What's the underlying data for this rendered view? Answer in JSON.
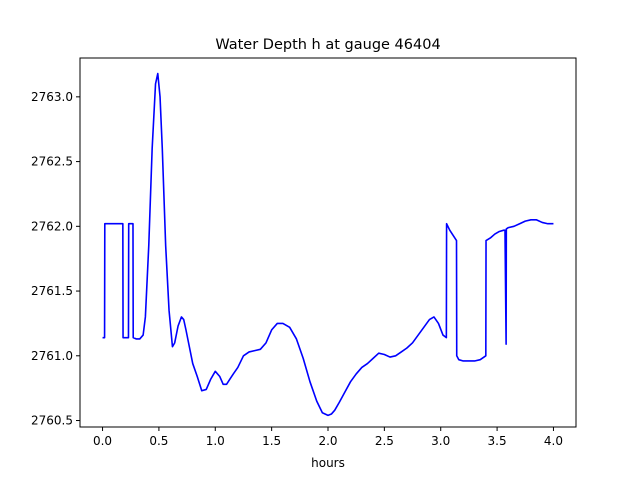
{
  "chart_data": {
    "type": "line",
    "title": "Water Depth h at gauge 46404",
    "xlabel": "hours",
    "ylabel": "",
    "xlim": [
      -0.2,
      4.2
    ],
    "ylim": [
      2760.45,
      2763.3
    ],
    "xticks": [
      0.0,
      0.5,
      1.0,
      1.5,
      2.0,
      2.5,
      3.0,
      3.5,
      4.0
    ],
    "xtick_labels": [
      "0.0",
      "0.5",
      "1.0",
      "1.5",
      "2.0",
      "2.5",
      "3.0",
      "3.5",
      "4.0"
    ],
    "yticks": [
      2760.5,
      2761.0,
      2761.5,
      2762.0,
      2762.5,
      2763.0
    ],
    "ytick_labels": [
      "2760.5",
      "2761.0",
      "2761.5",
      "2762.0",
      "2762.5",
      "2763.0"
    ],
    "grid": false,
    "series": [
      {
        "color": "#0000ff",
        "x": [
          0.0,
          0.018,
          0.02,
          0.18,
          0.182,
          0.23,
          0.232,
          0.27,
          0.272,
          0.3,
          0.33,
          0.36,
          0.38,
          0.41,
          0.44,
          0.47,
          0.49,
          0.51,
          0.53,
          0.56,
          0.59,
          0.62,
          0.64,
          0.67,
          0.7,
          0.72,
          0.74,
          0.77,
          0.8,
          0.84,
          0.88,
          0.92,
          0.96,
          1.0,
          1.04,
          1.07,
          1.1,
          1.13,
          1.16,
          1.2,
          1.25,
          1.3,
          1.35,
          1.4,
          1.45,
          1.5,
          1.55,
          1.6,
          1.66,
          1.72,
          1.78,
          1.84,
          1.9,
          1.95,
          2.0,
          2.03,
          2.06,
          2.1,
          2.15,
          2.2,
          2.25,
          2.3,
          2.35,
          2.4,
          2.45,
          2.5,
          2.55,
          2.6,
          2.65,
          2.7,
          2.75,
          2.8,
          2.85,
          2.9,
          2.94,
          2.98,
          3.02,
          3.05,
          3.052,
          3.08,
          3.14,
          3.142,
          3.16,
          3.2,
          3.25,
          3.3,
          3.35,
          3.4,
          3.402,
          3.44,
          3.48,
          3.52,
          3.56,
          3.57,
          3.58,
          3.582,
          3.6,
          3.65,
          3.7,
          3.75,
          3.8,
          3.85,
          3.9,
          3.95,
          4.0
        ],
        "y": [
          2761.14,
          2761.14,
          2762.02,
          2762.02,
          2761.14,
          2761.14,
          2762.02,
          2762.02,
          2761.14,
          2761.13,
          2761.13,
          2761.16,
          2761.3,
          2761.85,
          2762.6,
          2763.1,
          2763.18,
          2763.0,
          2762.6,
          2761.85,
          2761.35,
          2761.07,
          2761.1,
          2761.23,
          2761.3,
          2761.28,
          2761.2,
          2761.07,
          2760.94,
          2760.84,
          2760.73,
          2760.74,
          2760.82,
          2760.88,
          2760.84,
          2760.78,
          2760.78,
          2760.82,
          2760.86,
          2760.91,
          2761.0,
          2761.03,
          2761.04,
          2761.05,
          2761.1,
          2761.2,
          2761.25,
          2761.25,
          2761.22,
          2761.13,
          2760.98,
          2760.8,
          2760.65,
          2760.56,
          2760.54,
          2760.55,
          2760.58,
          2760.64,
          2760.72,
          2760.8,
          2760.86,
          2760.91,
          2760.94,
          2760.98,
          2761.02,
          2761.01,
          2760.99,
          2761.0,
          2761.03,
          2761.06,
          2761.1,
          2761.16,
          2761.22,
          2761.28,
          2761.3,
          2761.25,
          2761.16,
          2761.14,
          2762.02,
          2761.97,
          2761.89,
          2761.0,
          2760.97,
          2760.96,
          2760.96,
          2760.96,
          2760.97,
          2761.0,
          2761.89,
          2761.91,
          2761.94,
          2761.96,
          2761.97,
          2761.97,
          2761.09,
          2761.98,
          2761.99,
          2762.0,
          2762.02,
          2762.04,
          2762.05,
          2762.05,
          2762.03,
          2762.02,
          2762.02
        ]
      }
    ]
  }
}
